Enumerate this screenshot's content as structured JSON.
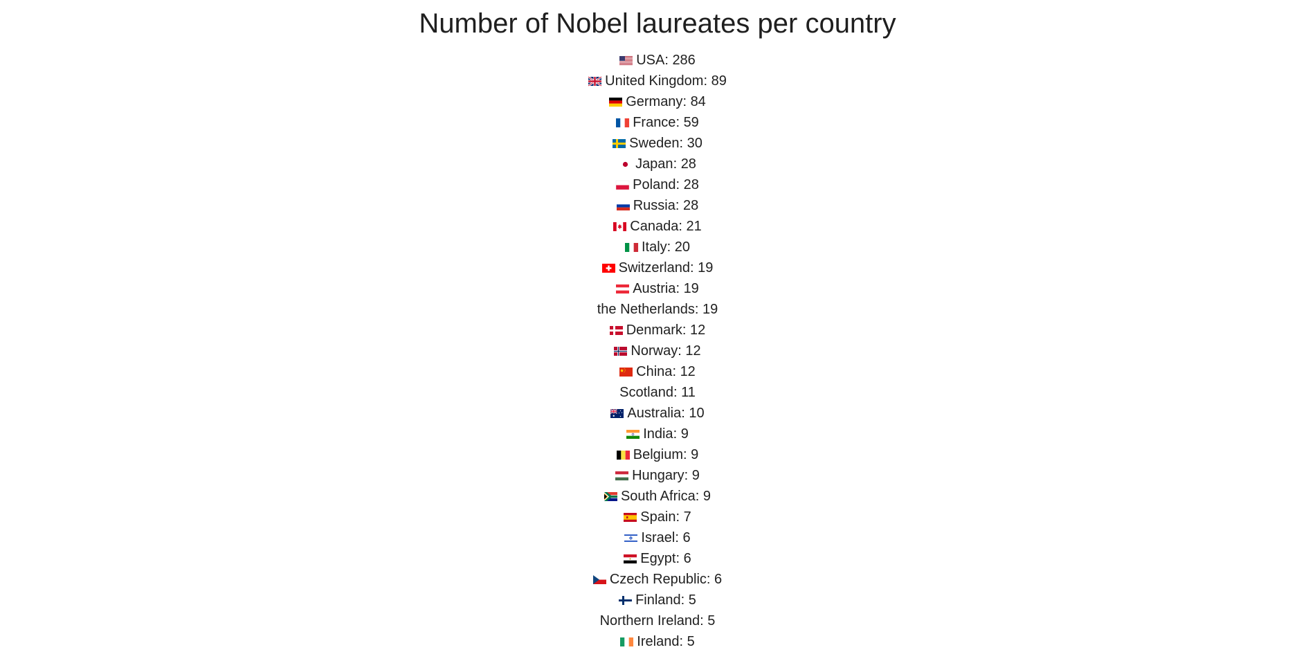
{
  "title": "Number of Nobel laureates per country",
  "countries": [
    {
      "name": "USA",
      "count": 286,
      "flag": "us"
    },
    {
      "name": "United Kingdom",
      "count": 89,
      "flag": "gb"
    },
    {
      "name": "Germany",
      "count": 84,
      "flag": "de"
    },
    {
      "name": "France",
      "count": 59,
      "flag": "fr"
    },
    {
      "name": "Sweden",
      "count": 30,
      "flag": "se"
    },
    {
      "name": "Japan",
      "count": 28,
      "flag": "jp"
    },
    {
      "name": "Poland",
      "count": 28,
      "flag": "pl"
    },
    {
      "name": "Russia",
      "count": 28,
      "flag": "ru"
    },
    {
      "name": "Canada",
      "count": 21,
      "flag": "ca"
    },
    {
      "name": "Italy",
      "count": 20,
      "flag": "it"
    },
    {
      "name": "Switzerland",
      "count": 19,
      "flag": "ch"
    },
    {
      "name": "Austria",
      "count": 19,
      "flag": "at"
    },
    {
      "name": "the Netherlands",
      "count": 19,
      "flag": ""
    },
    {
      "name": "Denmark",
      "count": 12,
      "flag": "dk"
    },
    {
      "name": "Norway",
      "count": 12,
      "flag": "no"
    },
    {
      "name": "China",
      "count": 12,
      "flag": "cn"
    },
    {
      "name": "Scotland",
      "count": 11,
      "flag": ""
    },
    {
      "name": "Australia",
      "count": 10,
      "flag": "au"
    },
    {
      "name": "India",
      "count": 9,
      "flag": "in"
    },
    {
      "name": "Belgium",
      "count": 9,
      "flag": "be"
    },
    {
      "name": "Hungary",
      "count": 9,
      "flag": "hu"
    },
    {
      "name": "South Africa",
      "count": 9,
      "flag": "za"
    },
    {
      "name": "Spain",
      "count": 7,
      "flag": "es"
    },
    {
      "name": "Israel",
      "count": 6,
      "flag": "il"
    },
    {
      "name": "Egypt",
      "count": 6,
      "flag": "eg"
    },
    {
      "name": "Czech Republic",
      "count": 6,
      "flag": "cz"
    },
    {
      "name": "Finland",
      "count": 5,
      "flag": "fi"
    },
    {
      "name": "Northern Ireland",
      "count": 5,
      "flag": ""
    },
    {
      "name": "Ireland",
      "count": 5,
      "flag": "ie"
    }
  ],
  "flag_icons": {
    "us": "us-flag-icon",
    "gb": "uk-flag-icon",
    "de": "germany-flag-icon",
    "fr": "france-flag-icon",
    "se": "sweden-flag-icon",
    "jp": "japan-flag-icon",
    "pl": "poland-flag-icon",
    "ru": "russia-flag-icon",
    "ca": "canada-flag-icon",
    "it": "italy-flag-icon",
    "ch": "switzerland-flag-icon",
    "at": "austria-flag-icon",
    "dk": "denmark-flag-icon",
    "no": "norway-flag-icon",
    "cn": "china-flag-icon",
    "au": "australia-flag-icon",
    "in": "india-flag-icon",
    "be": "belgium-flag-icon",
    "hu": "hungary-flag-icon",
    "za": "south-africa-flag-icon",
    "es": "spain-flag-icon",
    "il": "israel-flag-icon",
    "eg": "egypt-flag-icon",
    "cz": "czech-flag-icon",
    "fi": "finland-flag-icon",
    "ie": "ireland-flag-icon"
  }
}
